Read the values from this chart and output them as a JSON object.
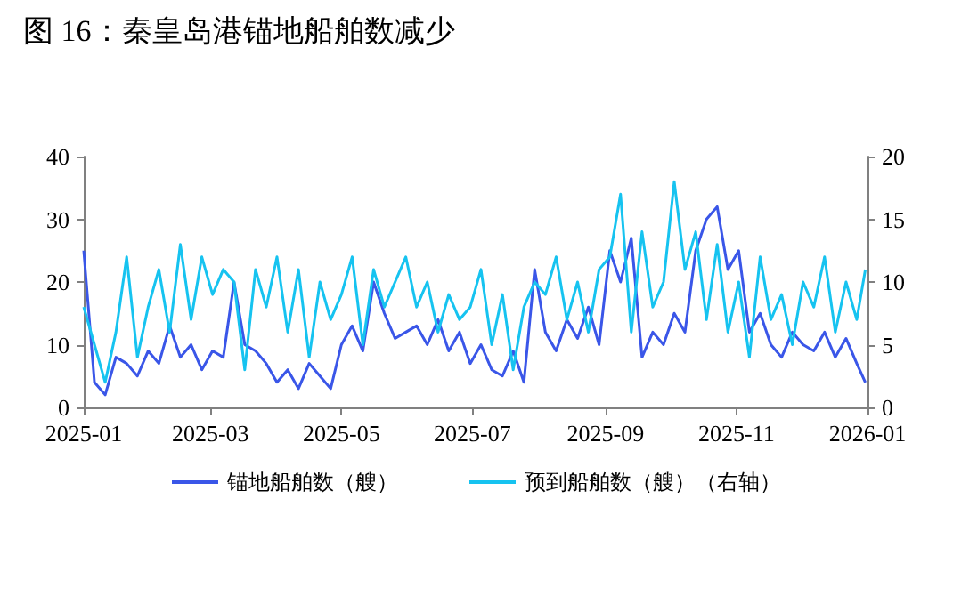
{
  "chart_data": {
    "type": "line",
    "title": "图 16：秦皇岛港锚地船舶数减少",
    "x": [
      "2025-01-01",
      "2025-01-06",
      "2025-01-11",
      "2025-01-16",
      "2025-01-21",
      "2025-01-26",
      "2025-01-31",
      "2025-02-05",
      "2025-02-10",
      "2025-02-15",
      "2025-02-20",
      "2025-02-25",
      "2025-03-02",
      "2025-03-07",
      "2025-03-12",
      "2025-03-17",
      "2025-03-22",
      "2025-03-27",
      "2025-04-01",
      "2025-04-06",
      "2025-04-11",
      "2025-04-16",
      "2025-04-21",
      "2025-04-26",
      "2025-05-01",
      "2025-05-06",
      "2025-05-11",
      "2025-05-16",
      "2025-05-21",
      "2025-05-26",
      "2025-05-31",
      "2025-06-05",
      "2025-06-10",
      "2025-06-15",
      "2025-06-20",
      "2025-06-25",
      "2025-06-30",
      "2025-07-05",
      "2025-07-10",
      "2025-07-15",
      "2025-07-20",
      "2025-07-25",
      "2025-07-30",
      "2025-08-04",
      "2025-08-09",
      "2025-08-14",
      "2025-08-19",
      "2025-08-24",
      "2025-08-29",
      "2025-09-03",
      "2025-09-08",
      "2025-09-13",
      "2025-09-18",
      "2025-09-23",
      "2025-09-28",
      "2025-10-03",
      "2025-10-08",
      "2025-10-13",
      "2025-10-18",
      "2025-10-23",
      "2025-10-28",
      "2025-11-02",
      "2025-11-07",
      "2025-11-12",
      "2025-11-17",
      "2025-11-22",
      "2025-11-27",
      "2025-12-02",
      "2025-12-07",
      "2025-12-12",
      "2025-12-17",
      "2025-12-22",
      "2025-12-27",
      "2025-12-31"
    ],
    "series": [
      {
        "name": "锚地船舶数（艘）",
        "color": "#3a56e8",
        "values": [
          25,
          4,
          2,
          8,
          7,
          5,
          9,
          7,
          13,
          8,
          10,
          6,
          9,
          8,
          20,
          10,
          9,
          7,
          4,
          6,
          3,
          7,
          5,
          3,
          10,
          13,
          9,
          20,
          15,
          11,
          12,
          13,
          10,
          14,
          9,
          12,
          7,
          10,
          6,
          5,
          9,
          4,
          22,
          12,
          9,
          14,
          11,
          16,
          10,
          25,
          20,
          27,
          8,
          12,
          10,
          15,
          12,
          25,
          30,
          32,
          22,
          25,
          12,
          15,
          10,
          8,
          12,
          10,
          9,
          12,
          8,
          11,
          7,
          4
        ]
      },
      {
        "name": "预到船舶数（艘）（右轴）",
        "color": "#16c3f0",
        "axis": "y2",
        "values": [
          8,
          5,
          2,
          6,
          12,
          4,
          8,
          11,
          6,
          13,
          7,
          12,
          9,
          11,
          10,
          3,
          11,
          8,
          12,
          6,
          11,
          4,
          10,
          7,
          9,
          12,
          5,
          11,
          8,
          10,
          12,
          8,
          10,
          6,
          9,
          7,
          8,
          11,
          5,
          9,
          3,
          8,
          10,
          9,
          12,
          7,
          10,
          6,
          11,
          12,
          17,
          6,
          14,
          8,
          10,
          18,
          11,
          14,
          7,
          13,
          6,
          10,
          4,
          12,
          7,
          9,
          5,
          10,
          8,
          12,
          6,
          10,
          7,
          11
        ]
      }
    ],
    "xlim": [
      "2025-01",
      "2026-01"
    ],
    "xticks": [
      "2025-01",
      "2025-03",
      "2025-05",
      "2025-07",
      "2025-09",
      "2025-11",
      "2026-01"
    ],
    "ylim": [
      0,
      40
    ],
    "yticks": [
      0,
      10,
      20,
      30,
      40
    ],
    "y2lim": [
      0,
      20
    ],
    "y2ticks": [
      0,
      5,
      10,
      15,
      20
    ],
    "grid": false,
    "legend": "bottom",
    "marker": "none",
    "line_style": "solid"
  }
}
